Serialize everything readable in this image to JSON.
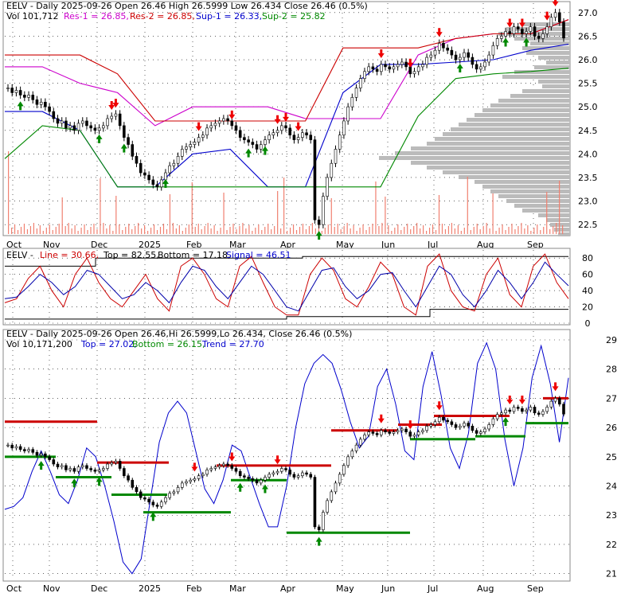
{
  "colors": {
    "res1": "#cc00cc",
    "res2": "#cc0000",
    "sup1": "#0000cc",
    "sup2": "#008800",
    "up_arrow": "#008800",
    "down_arrow": "#ee0000",
    "volume": "#f08070",
    "profile": "#bbbbbb",
    "macd_line": "#cc0000",
    "macd_signal": "#0000aa",
    "top_band": "#000000"
  },
  "x_axis_labels": [
    "Oct",
    "Nov",
    "Dec",
    "2025",
    "Feb",
    "Mar",
    "Apr",
    "May",
    "Jun",
    "Jul",
    "Aug",
    "Sep"
  ],
  "chart_data": [
    {
      "type": "candlestick",
      "panel": "price",
      "header": {
        "line1_prefix": "EELV - Daily 2025-09-26 Open 26.46  High 26.5999  Low 26.434  Close 26.46 (0.5%)",
        "vol": "Vol 101,712",
        "res1": "Res-1 = 26.85,",
        "res2": "Res-2 = 26.85,",
        "sup1": "Sup-1 = 26.33,",
        "sup2": "Sup-2 = 25.82"
      },
      "y_ticks": [
        "27.0",
        "26.5",
        "26.0",
        "25.5",
        "25.0",
        "24.5",
        "24.0",
        "23.5",
        "23.0",
        "22.5"
      ],
      "ylim": [
        22.3,
        27.2
      ],
      "close_series": [
        25.4,
        25.3,
        25.35,
        25.25,
        25.2,
        25.25,
        25.15,
        25.05,
        25.1,
        25.0,
        24.9,
        24.75,
        24.65,
        24.7,
        24.55,
        24.6,
        24.5,
        24.65,
        24.7,
        24.6,
        24.55,
        24.5,
        24.55,
        24.6,
        24.75,
        24.8,
        24.85,
        24.6,
        24.35,
        24.2,
        23.95,
        23.8,
        23.6,
        23.55,
        23.45,
        23.35,
        23.3,
        23.45,
        23.6,
        23.75,
        23.8,
        23.95,
        24.1,
        24.15,
        24.2,
        24.25,
        24.35,
        24.4,
        24.55,
        24.6,
        24.65,
        24.7,
        24.75,
        24.7,
        24.6,
        24.5,
        24.35,
        24.3,
        24.25,
        24.2,
        24.1,
        24.2,
        24.3,
        24.4,
        24.45,
        24.5,
        24.6,
        24.55,
        24.4,
        24.3,
        24.35,
        24.45,
        24.4,
        24.3,
        22.6,
        22.5,
        23.1,
        23.5,
        23.8,
        24.1,
        24.4,
        24.7,
        25.0,
        25.2,
        25.4,
        25.6,
        25.75,
        25.85,
        25.8,
        25.75,
        25.9,
        25.85,
        25.8,
        25.85,
        25.9,
        25.95,
        25.85,
        25.7,
        25.75,
        25.85,
        25.9,
        26.05,
        26.1,
        26.2,
        26.35,
        26.25,
        26.2,
        26.1,
        26.0,
        26.05,
        26.15,
        26.05,
        25.9,
        25.8,
        25.85,
        25.95,
        26.1,
        26.3,
        26.45,
        26.5,
        26.6,
        26.55,
        26.7,
        26.65,
        26.55,
        26.6,
        26.7,
        26.5,
        26.45,
        26.55,
        26.7,
        26.9,
        27.0,
        26.8,
        26.46
      ],
      "resistance_series": [
        {
          "name": "Res-1",
          "values": [
            25.85,
            25.85,
            25.5,
            25.3,
            24.6,
            25.0,
            25.0,
            25.0,
            24.75,
            24.75,
            24.75,
            26.1,
            26.45,
            26.55,
            26.55,
            26.85
          ]
        },
        {
          "name": "Res-2",
          "values": [
            26.1,
            26.1,
            26.1,
            25.7,
            24.7,
            24.7,
            24.7,
            24.7,
            24.7,
            26.25,
            26.25,
            26.25,
            26.45,
            26.55,
            26.55,
            26.85
          ]
        }
      ],
      "support_series": [
        {
          "name": "Sup-1",
          "values": [
            24.9,
            24.9,
            24.5,
            23.3,
            23.3,
            24.0,
            24.1,
            23.3,
            23.3,
            25.3,
            25.9,
            25.9,
            25.95,
            26.0,
            26.2,
            26.33
          ]
        },
        {
          "name": "Sup-2",
          "values": [
            23.9,
            24.6,
            24.5,
            23.3,
            23.3,
            23.3,
            23.3,
            23.3,
            23.3,
            23.3,
            23.3,
            24.8,
            25.6,
            25.7,
            25.75,
            25.82
          ]
        }
      ]
    },
    {
      "type": "line",
      "panel": "oscillator",
      "header": {
        "prefix": "EELV -",
        "line": "Line = 30.66,",
        "top": "Top = 82.55,",
        "bottom": "Bottom = 17.18,",
        "signal": "Signal = 46.51"
      },
      "y_ticks": [
        "80",
        "60",
        "40",
        "20",
        "0"
      ],
      "ylim": [
        0,
        90
      ],
      "series": [
        {
          "name": "Line",
          "values": [
            25,
            30,
            55,
            70,
            40,
            20,
            60,
            80,
            50,
            30,
            20,
            40,
            60,
            30,
            15,
            70,
            80,
            60,
            30,
            20,
            70,
            82,
            50,
            20,
            10,
            10,
            60,
            80,
            65,
            30,
            20,
            45,
            75,
            60,
            20,
            10,
            70,
            85,
            40,
            20,
            15,
            60,
            80,
            35,
            20,
            70,
            85,
            50,
            30
          ]
        },
        {
          "name": "Signal",
          "values": [
            30,
            32,
            45,
            60,
            50,
            35,
            45,
            65,
            60,
            45,
            30,
            35,
            50,
            40,
            25,
            50,
            70,
            65,
            45,
            30,
            50,
            70,
            60,
            40,
            20,
            15,
            40,
            65,
            68,
            45,
            30,
            40,
            60,
            62,
            40,
            20,
            45,
            70,
            60,
            35,
            20,
            40,
            65,
            50,
            30,
            50,
            75,
            60,
            46
          ]
        }
      ]
    },
    {
      "type": "candlestick",
      "panel": "trend",
      "header": {
        "line1_prefix": "EELV - Daily 2025-09-26 Open 26.46,Hi 26.5999,Lo 26.434,  Close 26.46 (0.5%)",
        "vol": "Vol 10,171,200",
        "top": "Top = 27.02,",
        "bottom": "Bottom = 26.15,",
        "trend": "Trend = 27.70"
      },
      "y_ticks": [
        "29",
        "28",
        "27",
        "26",
        "25",
        "24",
        "23",
        "22",
        "21"
      ],
      "ylim": [
        20.8,
        29.3
      ],
      "band_series": [
        23.2,
        23.3,
        23.6,
        24.5,
        25.2,
        24.5,
        23.7,
        23.4,
        24.2,
        25.3,
        25.0,
        24.0,
        22.8,
        21.4,
        21.0,
        21.5,
        23.5,
        25.5,
        26.5,
        26.9,
        26.5,
        25.2,
        23.9,
        23.4,
        24.2,
        25.4,
        25.2,
        24.3,
        23.4,
        22.6,
        22.6,
        24.0,
        26.0,
        27.5,
        28.2,
        28.5,
        28.2,
        27.3,
        26.2,
        25.3,
        25.7,
        27.4,
        28.0,
        26.8,
        25.2,
        24.9,
        27.4,
        28.6,
        27.1,
        25.3,
        24.6,
        25.8,
        28.2,
        28.9,
        28.0,
        25.6,
        24.0,
        25.3,
        27.7,
        28.8,
        27.5,
        25.5,
        27.7
      ]
    }
  ]
}
